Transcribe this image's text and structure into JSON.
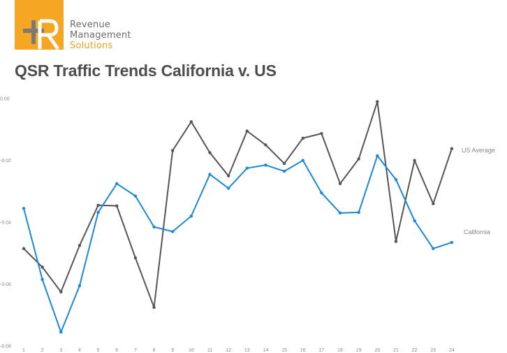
{
  "logo": {
    "line1": "Revenue",
    "line2": "Management",
    "line3": "Solutions",
    "colors": {
      "box": "#f5a623",
      "text": "#6b6b6b",
      "accent": "#e5a21a"
    }
  },
  "chart_data": {
    "type": "line",
    "title": "QSR Traffic Trends California v. US",
    "x": [
      1,
      2,
      3,
      4,
      5,
      6,
      7,
      8,
      9,
      10,
      11,
      12,
      13,
      14,
      15,
      16,
      17,
      18,
      19,
      20,
      21,
      22,
      23,
      24
    ],
    "xlabel": "",
    "ylabel": "",
    "ylim": [
      -0.08,
      0.0
    ],
    "yticks": [
      "0.00",
      "-0.02",
      "-0.04",
      "-0.06",
      "-0.08"
    ],
    "grid": false,
    "legend": "inline-right",
    "series": [
      {
        "name": "US Average",
        "color": "#555555",
        "values": [
          -0.0485,
          -0.0545,
          -0.0625,
          -0.0475,
          -0.0345,
          -0.0347,
          -0.0515,
          -0.0675,
          -0.0168,
          -0.0075,
          -0.0175,
          -0.025,
          -0.0105,
          -0.015,
          -0.021,
          -0.0128,
          -0.0113,
          -0.0275,
          -0.0195,
          -0.001,
          -0.0462,
          -0.02,
          -0.034,
          -0.0162
        ]
      },
      {
        "name": "California",
        "color": "#1b87d8",
        "values": [
          -0.0355,
          -0.0585,
          -0.0755,
          -0.0605,
          -0.0368,
          -0.0275,
          -0.0315,
          -0.0415,
          -0.043,
          -0.038,
          -0.0245,
          -0.029,
          -0.0225,
          -0.0215,
          -0.0235,
          -0.02,
          -0.0305,
          -0.037,
          -0.0368,
          -0.0185,
          -0.0262,
          -0.0395,
          -0.0485,
          -0.0465
        ]
      }
    ]
  }
}
